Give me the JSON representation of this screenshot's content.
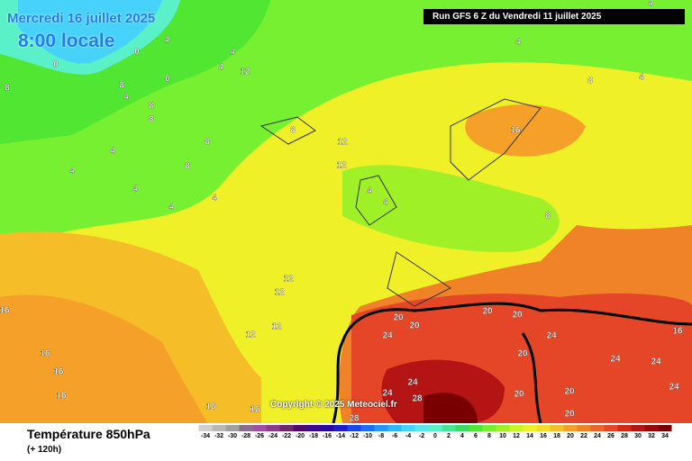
{
  "header": {
    "date": "Mercredi 16 juillet 2025",
    "time": "8:00 locale",
    "run": "Run GFS 6 Z du Vendredi 11 juillet 2025"
  },
  "copyright": "Copyright © 2025 Meteociel.fr",
  "footer": {
    "title": "Température 850hPa",
    "lead": "(+ 120h)"
  },
  "scale": {
    "values": [
      -34,
      -32,
      -30,
      -28,
      -26,
      -24,
      -22,
      -20,
      -18,
      -16,
      -14,
      -12,
      -10,
      -8,
      -6,
      -4,
      -2,
      0,
      2,
      4,
      6,
      8,
      10,
      12,
      14,
      16,
      18,
      20,
      22,
      24,
      26,
      28,
      30,
      32,
      34
    ],
    "colors": [
      "#d0d0d0",
      "#b8b8b8",
      "#a0a0a0",
      "#8c6e8c",
      "#a050a0",
      "#8a3c8a",
      "#6e286e",
      "#500a6e",
      "#3c0a8c",
      "#280aa0",
      "#1e1ec8",
      "#1e46e6",
      "#1e6ef0",
      "#2896f5",
      "#32b4fa",
      "#46d2fa",
      "#5ae6f0",
      "#5af0c8",
      "#46e696",
      "#3cdc64",
      "#50e632",
      "#78f032",
      "#a0f028",
      "#c8f528",
      "#f0f028",
      "#f5dc28",
      "#f5be28",
      "#f5a028",
      "#f08228",
      "#eb6428",
      "#e64628",
      "#d22814",
      "#b41414",
      "#960a0a",
      "#780000"
    ]
  },
  "contour_labels": [
    0,
    0,
    0,
    4,
    4,
    4,
    4,
    4,
    4,
    8,
    8,
    8,
    8,
    4,
    4,
    4,
    4,
    4,
    8,
    12,
    8,
    8,
    8,
    4,
    4,
    8,
    16,
    12,
    12,
    12,
    12,
    16,
    16,
    16,
    16,
    16,
    16,
    20,
    20,
    20,
    20,
    20,
    24,
    24,
    24,
    24,
    28,
    28,
    20,
    20,
    20,
    24,
    24,
    24,
    16,
    12,
    4,
    12
  ]
}
